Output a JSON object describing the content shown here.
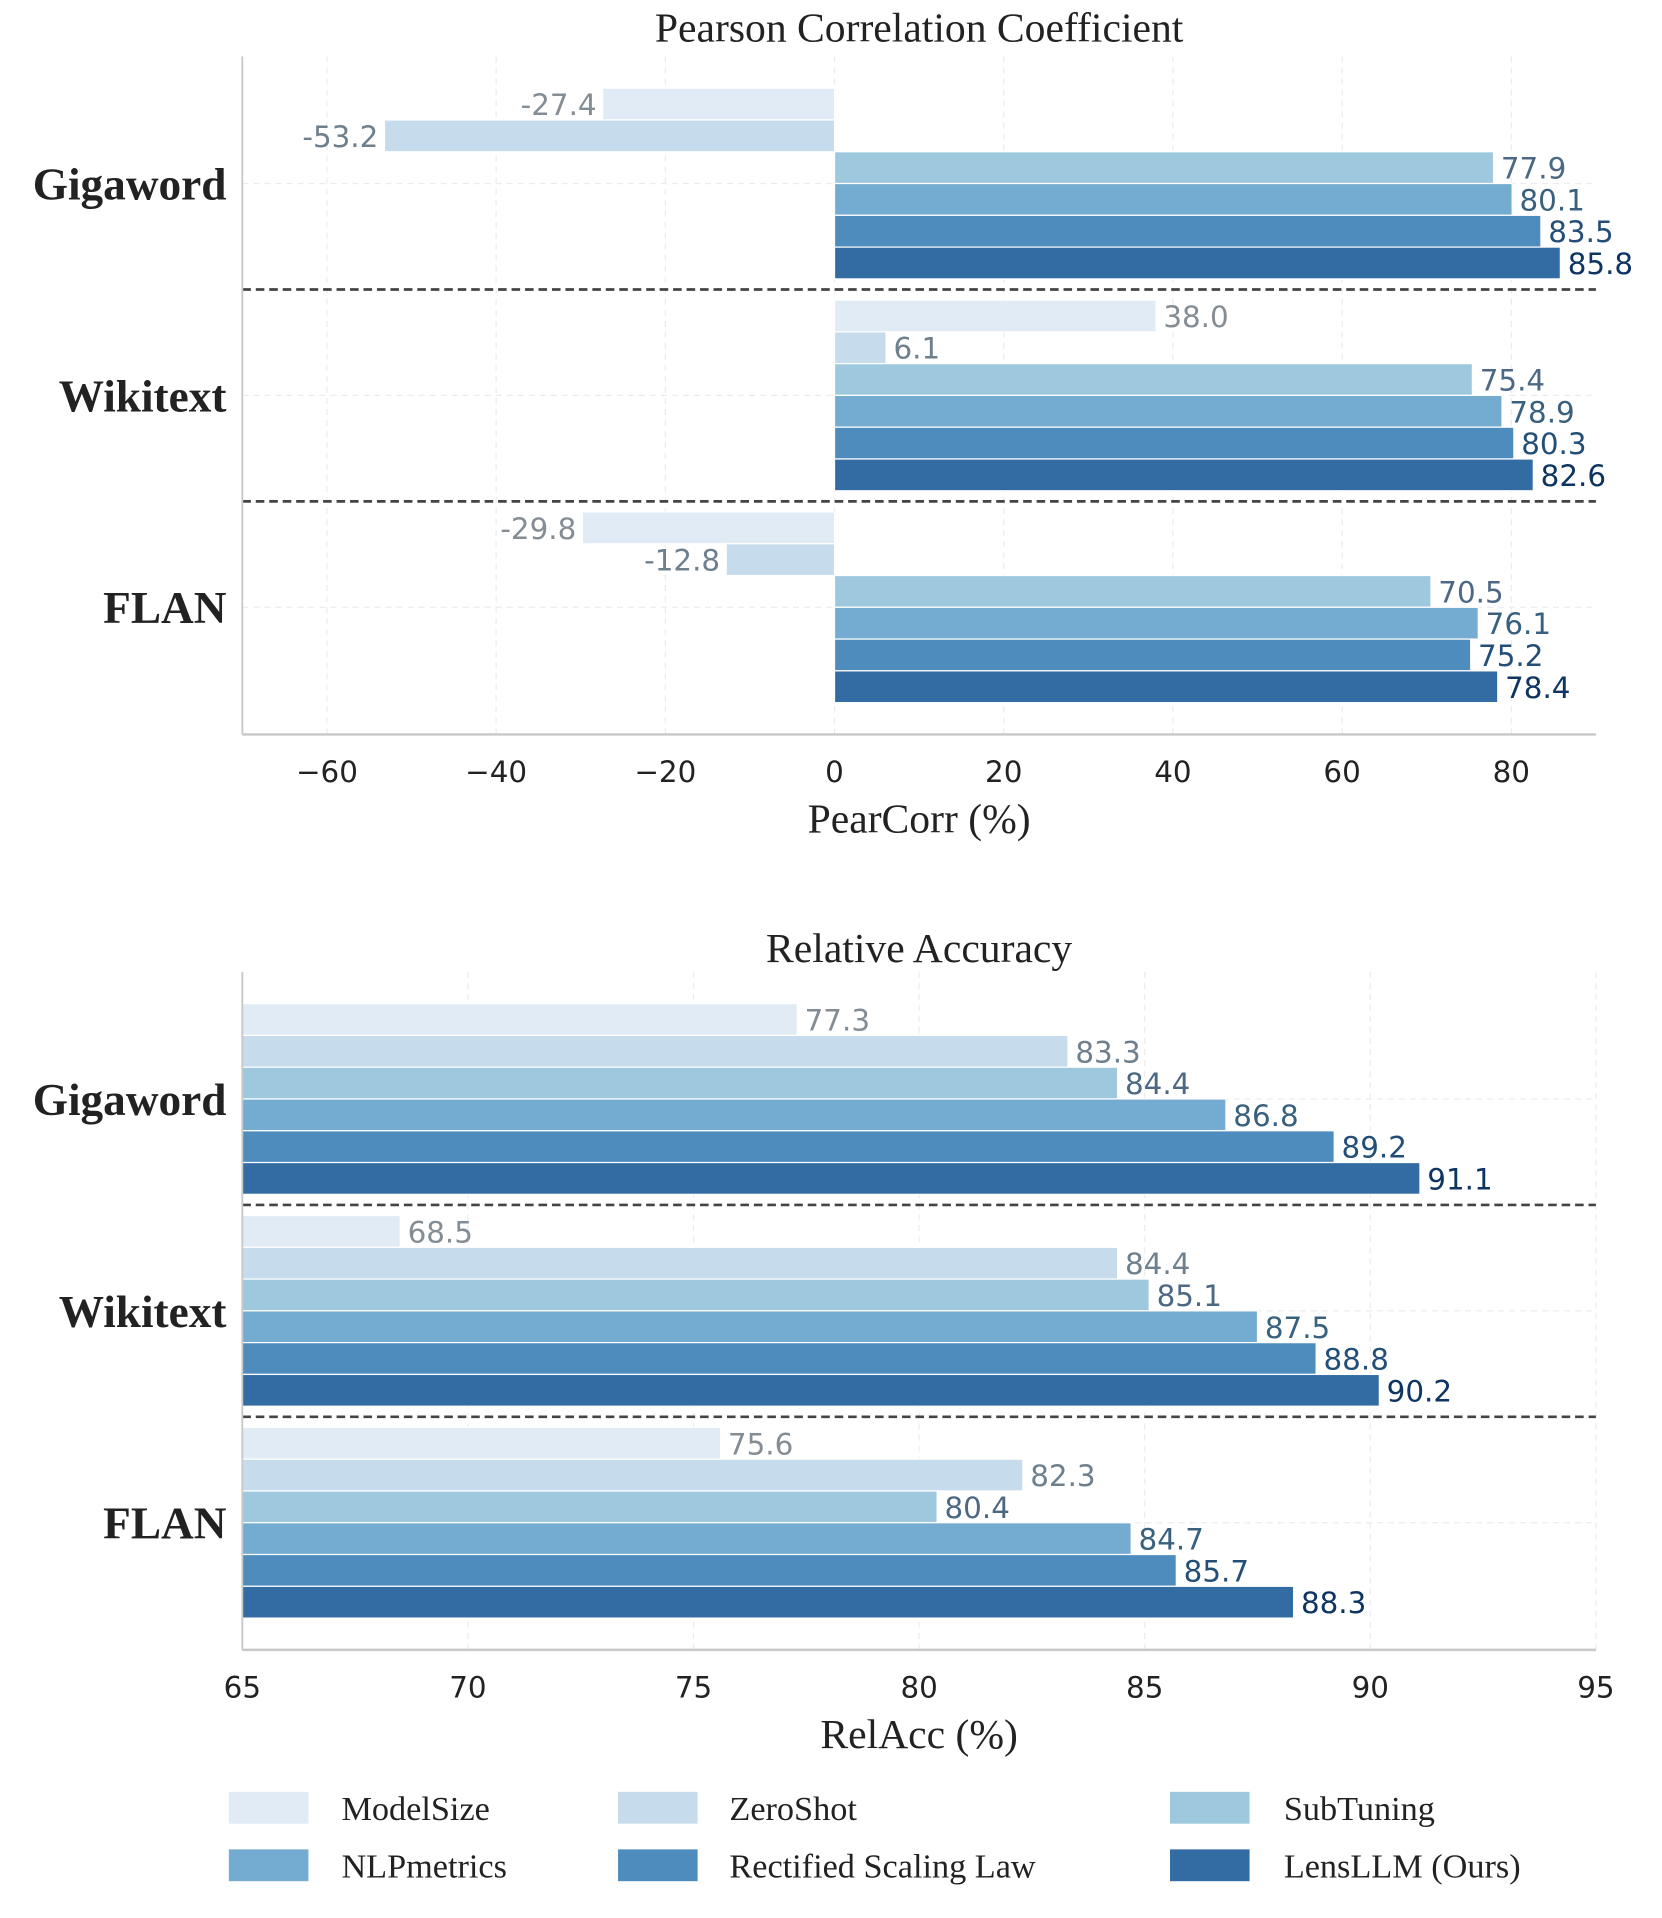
{
  "chart_data": [
    {
      "type": "bar",
      "orientation": "horizontal",
      "title": "Pearson Correlation Coefficient",
      "xlabel": "PearCorr (%)",
      "ylabel": "",
      "xlim": [
        -70,
        90
      ],
      "xticks": [
        -60,
        -40,
        -20,
        0,
        20,
        40,
        60,
        80
      ],
      "xtick_labels": [
        "−60",
        "−40",
        "−20",
        "0",
        "20",
        "40",
        "60",
        "80"
      ],
      "categories": [
        "Gigaword",
        "Wikitext",
        "FLAN"
      ],
      "grid": true,
      "series": [
        {
          "name": "ModelSize",
          "values": [
            -27.4,
            38.0,
            -29.8
          ],
          "labels": [
            "-27.4",
            "38.0",
            "-29.8"
          ]
        },
        {
          "name": "ZeroShot",
          "values": [
            -53.2,
            6.1,
            -12.8
          ],
          "labels": [
            "-53.2",
            "6.1",
            "-12.8"
          ]
        },
        {
          "name": "SubTuning",
          "values": [
            77.9,
            75.4,
            70.5
          ],
          "labels": [
            "77.9",
            "75.4",
            "70.5"
          ]
        },
        {
          "name": "NLPmetrics",
          "values": [
            80.1,
            78.9,
            76.1
          ],
          "labels": [
            "80.1",
            "78.9",
            "76.1"
          ]
        },
        {
          "name": "Rectified Scaling Law",
          "values": [
            83.5,
            80.3,
            75.2
          ],
          "labels": [
            "83.5",
            "80.3",
            "75.2"
          ]
        },
        {
          "name": "LensLLM (Ours)",
          "values": [
            85.8,
            82.6,
            78.4
          ],
          "labels": [
            "85.8",
            "82.6",
            "78.4"
          ]
        }
      ]
    },
    {
      "type": "bar",
      "orientation": "horizontal",
      "title": "Relative Accuracy",
      "xlabel": "RelAcc (%)",
      "ylabel": "",
      "xlim": [
        65,
        95
      ],
      "xticks": [
        65,
        70,
        75,
        80,
        85,
        90,
        95
      ],
      "xtick_labels": [
        "65",
        "70",
        "75",
        "80",
        "85",
        "90",
        "95"
      ],
      "categories": [
        "Gigaword",
        "Wikitext",
        "FLAN"
      ],
      "grid": true,
      "series": [
        {
          "name": "ModelSize",
          "values": [
            77.3,
            68.5,
            75.6
          ],
          "labels": [
            "77.3",
            "68.5",
            "75.6"
          ]
        },
        {
          "name": "ZeroShot",
          "values": [
            83.3,
            84.4,
            82.3
          ],
          "labels": [
            "83.3",
            "84.4",
            "82.3"
          ]
        },
        {
          "name": "SubTuning",
          "values": [
            84.4,
            85.1,
            80.4
          ],
          "labels": [
            "84.4",
            "85.1",
            "80.4"
          ]
        },
        {
          "name": "NLPmetrics",
          "values": [
            86.8,
            87.5,
            84.7
          ],
          "labels": [
            "86.8",
            "87.5",
            "84.7"
          ]
        },
        {
          "name": "Rectified Scaling Law",
          "values": [
            89.2,
            88.8,
            85.7
          ],
          "labels": [
            "89.2",
            "88.8",
            "85.7"
          ]
        },
        {
          "name": "LensLLM (Ours)",
          "values": [
            91.1,
            90.2,
            88.3
          ],
          "labels": [
            "91.1",
            "90.2",
            "88.3"
          ]
        }
      ]
    }
  ],
  "legend": {
    "placement": "bottom",
    "items": [
      "ModelSize",
      "ZeroShot",
      "SubTuning",
      "NLPmetrics",
      "Rectified Scaling Law",
      "LensLLM (Ours)"
    ]
  },
  "colors": {
    "bars": [
      "#e0ebf5",
      "#c6dbeb",
      "#9ec8de",
      "#74abd0",
      "#4e8cbd",
      "#336ca3"
    ],
    "labels": [
      "#848c94",
      "#6e7f8e",
      "#4d6884",
      "#38607f",
      "#234e78",
      "#0e3461"
    ],
    "separator": "#444444",
    "grid": "#ececec",
    "axis": "#c8c8c8"
  }
}
